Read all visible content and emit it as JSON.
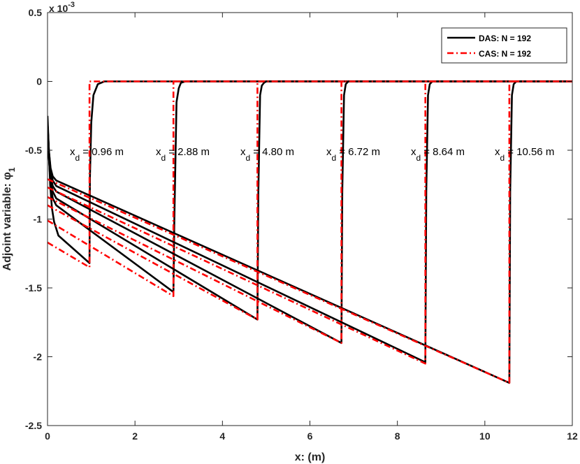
{
  "chart_data": {
    "type": "line",
    "title": "",
    "xlabel": "x: (m)",
    "ylabel": "Adjoint variable: φ",
    "ylabel_subscript": "1",
    "y_exponent_label": "x 10",
    "y_exponent_power": "-3",
    "xlim": [
      0,
      12
    ],
    "ylim": [
      -2.5,
      0.5
    ],
    "x_ticks": [
      0,
      2,
      4,
      6,
      8,
      10,
      12
    ],
    "x_tick_labels": [
      "0",
      "2",
      "4",
      "6",
      "8",
      "10",
      "12"
    ],
    "y_ticks": [
      0.5,
      0,
      -0.5,
      -1,
      -1.5,
      -2,
      -2.5
    ],
    "y_tick_labels": [
      "0.5",
      "0",
      "-0.5",
      "-1",
      "-1.5",
      "-2",
      "-2.5"
    ],
    "grid": false,
    "legend_position": "top-right",
    "series": [
      {
        "name": "DAS: N = 192",
        "color": "#000000",
        "style": "solid"
      },
      {
        "name": "CAS: N = 192",
        "color": "#ff0000",
        "style": "dash-dot"
      }
    ],
    "cases": [
      {
        "xd": 0.96,
        "label_prefix": "x",
        "label_sub": "d",
        "label_value": "= 0.96 m",
        "das": {
          "x": [
            0.0,
            0.03,
            0.06,
            0.1,
            0.15,
            0.25,
            0.96,
            0.97,
            1.0,
            1.05,
            1.15,
            1.3,
            12.0
          ],
          "y": [
            -0.25,
            -0.5,
            -0.75,
            -0.92,
            -1.02,
            -1.12,
            -1.32,
            -0.7,
            -0.3,
            -0.1,
            -0.02,
            0.0,
            0.0
          ]
        },
        "cas": {
          "x": [
            0.0,
            0.96,
            0.96,
            1.0,
            12.0
          ],
          "y": [
            -1.17,
            -1.35,
            0.0,
            0.0,
            0.0
          ]
        }
      },
      {
        "xd": 2.88,
        "label_prefix": "x",
        "label_sub": "d",
        "label_value": "= 2.88 m",
        "das": {
          "x": [
            0.0,
            0.03,
            0.07,
            0.12,
            0.2,
            2.88,
            2.9,
            2.95,
            3.0,
            3.05,
            3.15,
            12.0
          ],
          "y": [
            -0.3,
            -0.55,
            -0.75,
            -0.85,
            -0.9,
            -1.53,
            -1.0,
            -0.15,
            -0.05,
            -0.01,
            0.0,
            0.0
          ]
        },
        "cas": {
          "x": [
            0.0,
            2.88,
            2.88,
            12.0
          ],
          "y": [
            -1.01,
            -1.56,
            0.0,
            0.0
          ]
        }
      },
      {
        "xd": 4.8,
        "label_prefix": "x",
        "label_sub": "d",
        "label_value": "= 4.80 m",
        "das": {
          "x": [
            0.0,
            0.03,
            0.07,
            0.12,
            0.2,
            4.8,
            4.82,
            4.86,
            4.9,
            4.95,
            5.0,
            12.0
          ],
          "y": [
            -0.3,
            -0.55,
            -0.72,
            -0.8,
            -0.85,
            -1.73,
            -0.8,
            -0.1,
            -0.03,
            -0.01,
            0.0,
            0.0
          ]
        },
        "cas": {
          "x": [
            0.0,
            4.8,
            4.8,
            12.0
          ],
          "y": [
            -0.9,
            -1.73,
            0.0,
            0.0
          ]
        }
      },
      {
        "xd": 6.72,
        "label_prefix": "x",
        "label_sub": "d",
        "label_value": "= 6.72 m",
        "das": {
          "x": [
            0.0,
            0.03,
            0.07,
            0.12,
            0.2,
            6.72,
            6.74,
            6.78,
            6.82,
            6.88,
            12.0
          ],
          "y": [
            -0.3,
            -0.52,
            -0.68,
            -0.76,
            -0.8,
            -1.9,
            -0.8,
            -0.1,
            -0.02,
            0.0,
            0.0
          ]
        },
        "cas": {
          "x": [
            0.0,
            6.72,
            6.72,
            12.0
          ],
          "y": [
            -0.84,
            -1.9,
            0.0,
            0.0
          ]
        }
      },
      {
        "xd": 8.64,
        "label_prefix": "x",
        "label_sub": "d",
        "label_value": "= 8.64 m",
        "das": {
          "x": [
            0.0,
            0.03,
            0.07,
            0.12,
            0.2,
            8.64,
            8.66,
            8.7,
            8.74,
            8.8,
            12.0
          ],
          "y": [
            -0.3,
            -0.5,
            -0.65,
            -0.72,
            -0.76,
            -2.04,
            -0.8,
            -0.1,
            -0.02,
            0.0,
            0.0
          ]
        },
        "cas": {
          "x": [
            0.0,
            8.64,
            8.64,
            12.0
          ],
          "y": [
            -0.77,
            -2.05,
            0.0,
            0.0
          ]
        }
      },
      {
        "xd": 10.56,
        "label_prefix": "x",
        "label_sub": "d",
        "label_value": "= 10.56 m",
        "das": {
          "x": [
            0.0,
            0.03,
            0.07,
            0.12,
            0.2,
            10.56,
            10.58,
            10.62,
            10.66,
            10.72,
            12.0
          ],
          "y": [
            -0.3,
            -0.5,
            -0.63,
            -0.69,
            -0.72,
            -2.19,
            -0.8,
            -0.1,
            -0.02,
            0.0,
            0.0
          ]
        },
        "cas": {
          "x": [
            0.0,
            10.56,
            10.56,
            12.0
          ],
          "y": [
            -0.71,
            -2.19,
            0.0,
            0.0
          ]
        }
      }
    ]
  }
}
